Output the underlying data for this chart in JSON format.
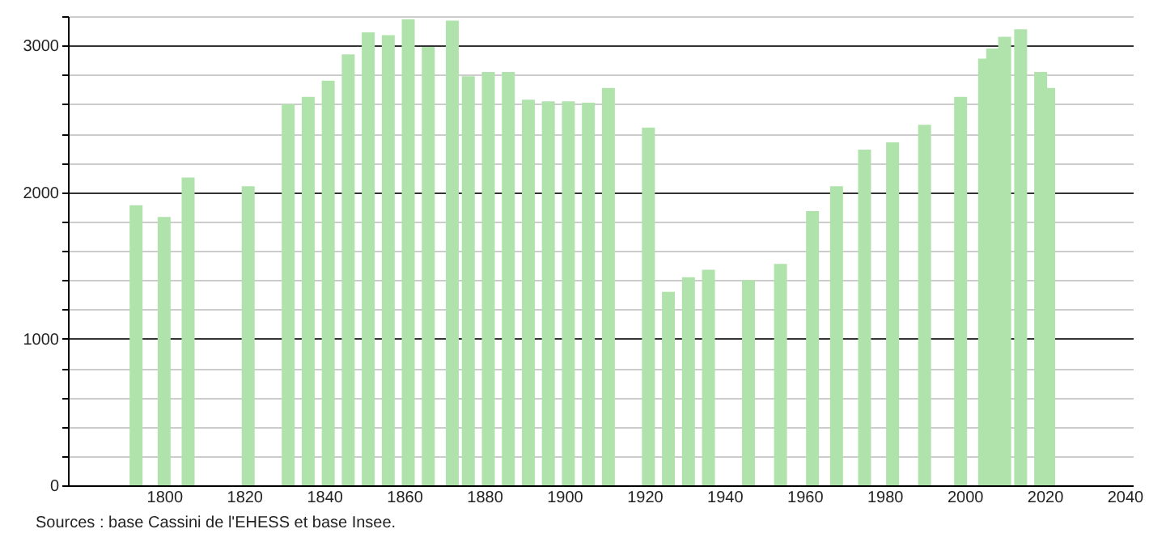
{
  "chart_data": {
    "type": "bar",
    "x": [
      1793,
      1800,
      1806,
      1821,
      1831,
      1836,
      1841,
      1846,
      1851,
      1856,
      1861,
      1866,
      1872,
      1876,
      1881,
      1886,
      1891,
      1896,
      1901,
      1906,
      1911,
      1921,
      1926,
      1931,
      1936,
      1946,
      1954,
      1962,
      1968,
      1975,
      1982,
      1990,
      1999,
      2005,
      2007,
      2010,
      2014,
      2019,
      2021
    ],
    "values": [
      1910,
      1830,
      2100,
      2040,
      2600,
      2650,
      2760,
      2940,
      3090,
      3070,
      3180,
      2990,
      3170,
      2790,
      2820,
      2820,
      2630,
      2620,
      2620,
      2610,
      2710,
      2440,
      1320,
      1420,
      1470,
      1400,
      1510,
      1870,
      2040,
      2290,
      2340,
      2460,
      2650,
      2910,
      2980,
      3060,
      3110,
      2820,
      2710
    ],
    "color": "#b0e3ac",
    "xlim": [
      1778,
      2040
    ],
    "xticks": [
      1800,
      1820,
      1840,
      1860,
      1880,
      1900,
      1920,
      1940,
      1960,
      1980,
      2000,
      2020,
      2040
    ],
    "ylim": [
      0,
      3200
    ],
    "yticks": [
      0,
      {
        "value": 200,
        "label": null
      },
      {
        "value": 400,
        "label": null
      },
      {
        "value": 600,
        "label": null
      },
      {
        "value": 800,
        "label": null
      },
      1000,
      {
        "value": 1200,
        "label": null
      },
      {
        "value": 1400,
        "label": null
      },
      {
        "value": 1600,
        "label": null
      },
      {
        "value": 1800,
        "label": null
      },
      2000,
      {
        "value": 2200,
        "label": null
      },
      {
        "value": 2400,
        "label": null
      },
      {
        "value": 2600,
        "label": null
      },
      {
        "value": 2800,
        "label": null
      },
      3000,
      {
        "value": 3200,
        "label": null
      }
    ],
    "grid": "y",
    "annotations": [
      "Sources : base Cassini de l'EHESS et base Insee."
    ]
  }
}
